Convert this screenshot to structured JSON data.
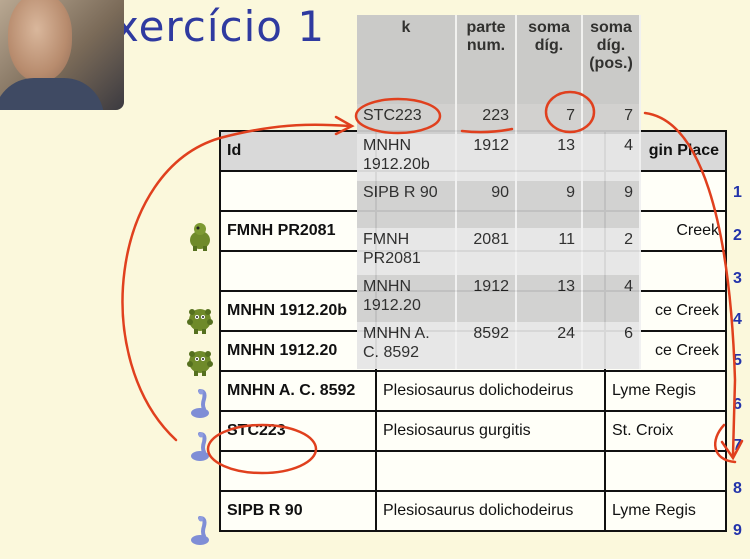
{
  "title": "xercício 1",
  "main_table": {
    "headers": [
      "Id",
      "",
      "gin Place"
    ],
    "rows": [
      {
        "id": "",
        "species": "",
        "place": "",
        "num": "1",
        "icon": ""
      },
      {
        "id": "FMNH PR2081",
        "species": "",
        "place": "Creek",
        "num": "2",
        "icon": "dinosaur-icon"
      },
      {
        "id": "",
        "species": "",
        "place": "",
        "num": "3",
        "icon": ""
      },
      {
        "id": "MNHN 1912.20b",
        "species": "",
        "place": "ce Creek",
        "num": "4",
        "icon": "spiky-dinosaur-icon"
      },
      {
        "id": "MNHN 1912.20",
        "species": "",
        "place": "ce Creek",
        "num": "5",
        "icon": "spiky-dinosaur-icon"
      },
      {
        "id": "MNHN A. C. 8592",
        "species": "Plesiosaurus dolichodeirus",
        "place": "Lyme Regis",
        "num": "6",
        "icon": "plesiosaur-icon"
      },
      {
        "id": "STC223",
        "species": "Plesiosaurus gurgitis",
        "place": "St. Croix",
        "num": "7",
        "icon": "plesiosaur-icon"
      },
      {
        "id": "",
        "species": "",
        "place": "",
        "num": "8",
        "icon": ""
      },
      {
        "id": "SIPB R 90",
        "species": "Plesiosaurus dolichodeirus",
        "place": "Lyme Regis",
        "num": "9",
        "icon": "plesiosaur-icon"
      }
    ]
  },
  "overlay_table": {
    "headers": [
      "k",
      "parte num.",
      "soma díg.",
      "soma díg. (pos.)"
    ],
    "rows": [
      {
        "k": "STC223",
        "parte": "223",
        "soma": "7",
        "pos": "7"
      },
      {
        "k": "MNHN 1912.20b",
        "parte": "1912",
        "soma": "13",
        "pos": "4"
      },
      {
        "k": "SIPB R 90",
        "parte": "90",
        "soma": "9",
        "pos": "9"
      },
      {
        "k": "FMNH PR2081",
        "parte": "2081",
        "soma": "11",
        "pos": "2"
      },
      {
        "k": "MNHN 1912.20",
        "parte": "1912",
        "soma": "13",
        "pos": "4"
      },
      {
        "k": "MNHN A. C. 8592",
        "parte": "8592",
        "soma": "24",
        "pos": "6"
      }
    ]
  },
  "colors": {
    "title": "#2f3aa0",
    "row_number": "#2233aa",
    "annotation": "#e0401e",
    "background": "#fbf8dc",
    "dinosaur": "#6f8a2a",
    "plesiosaur": "#7f8ed6"
  }
}
